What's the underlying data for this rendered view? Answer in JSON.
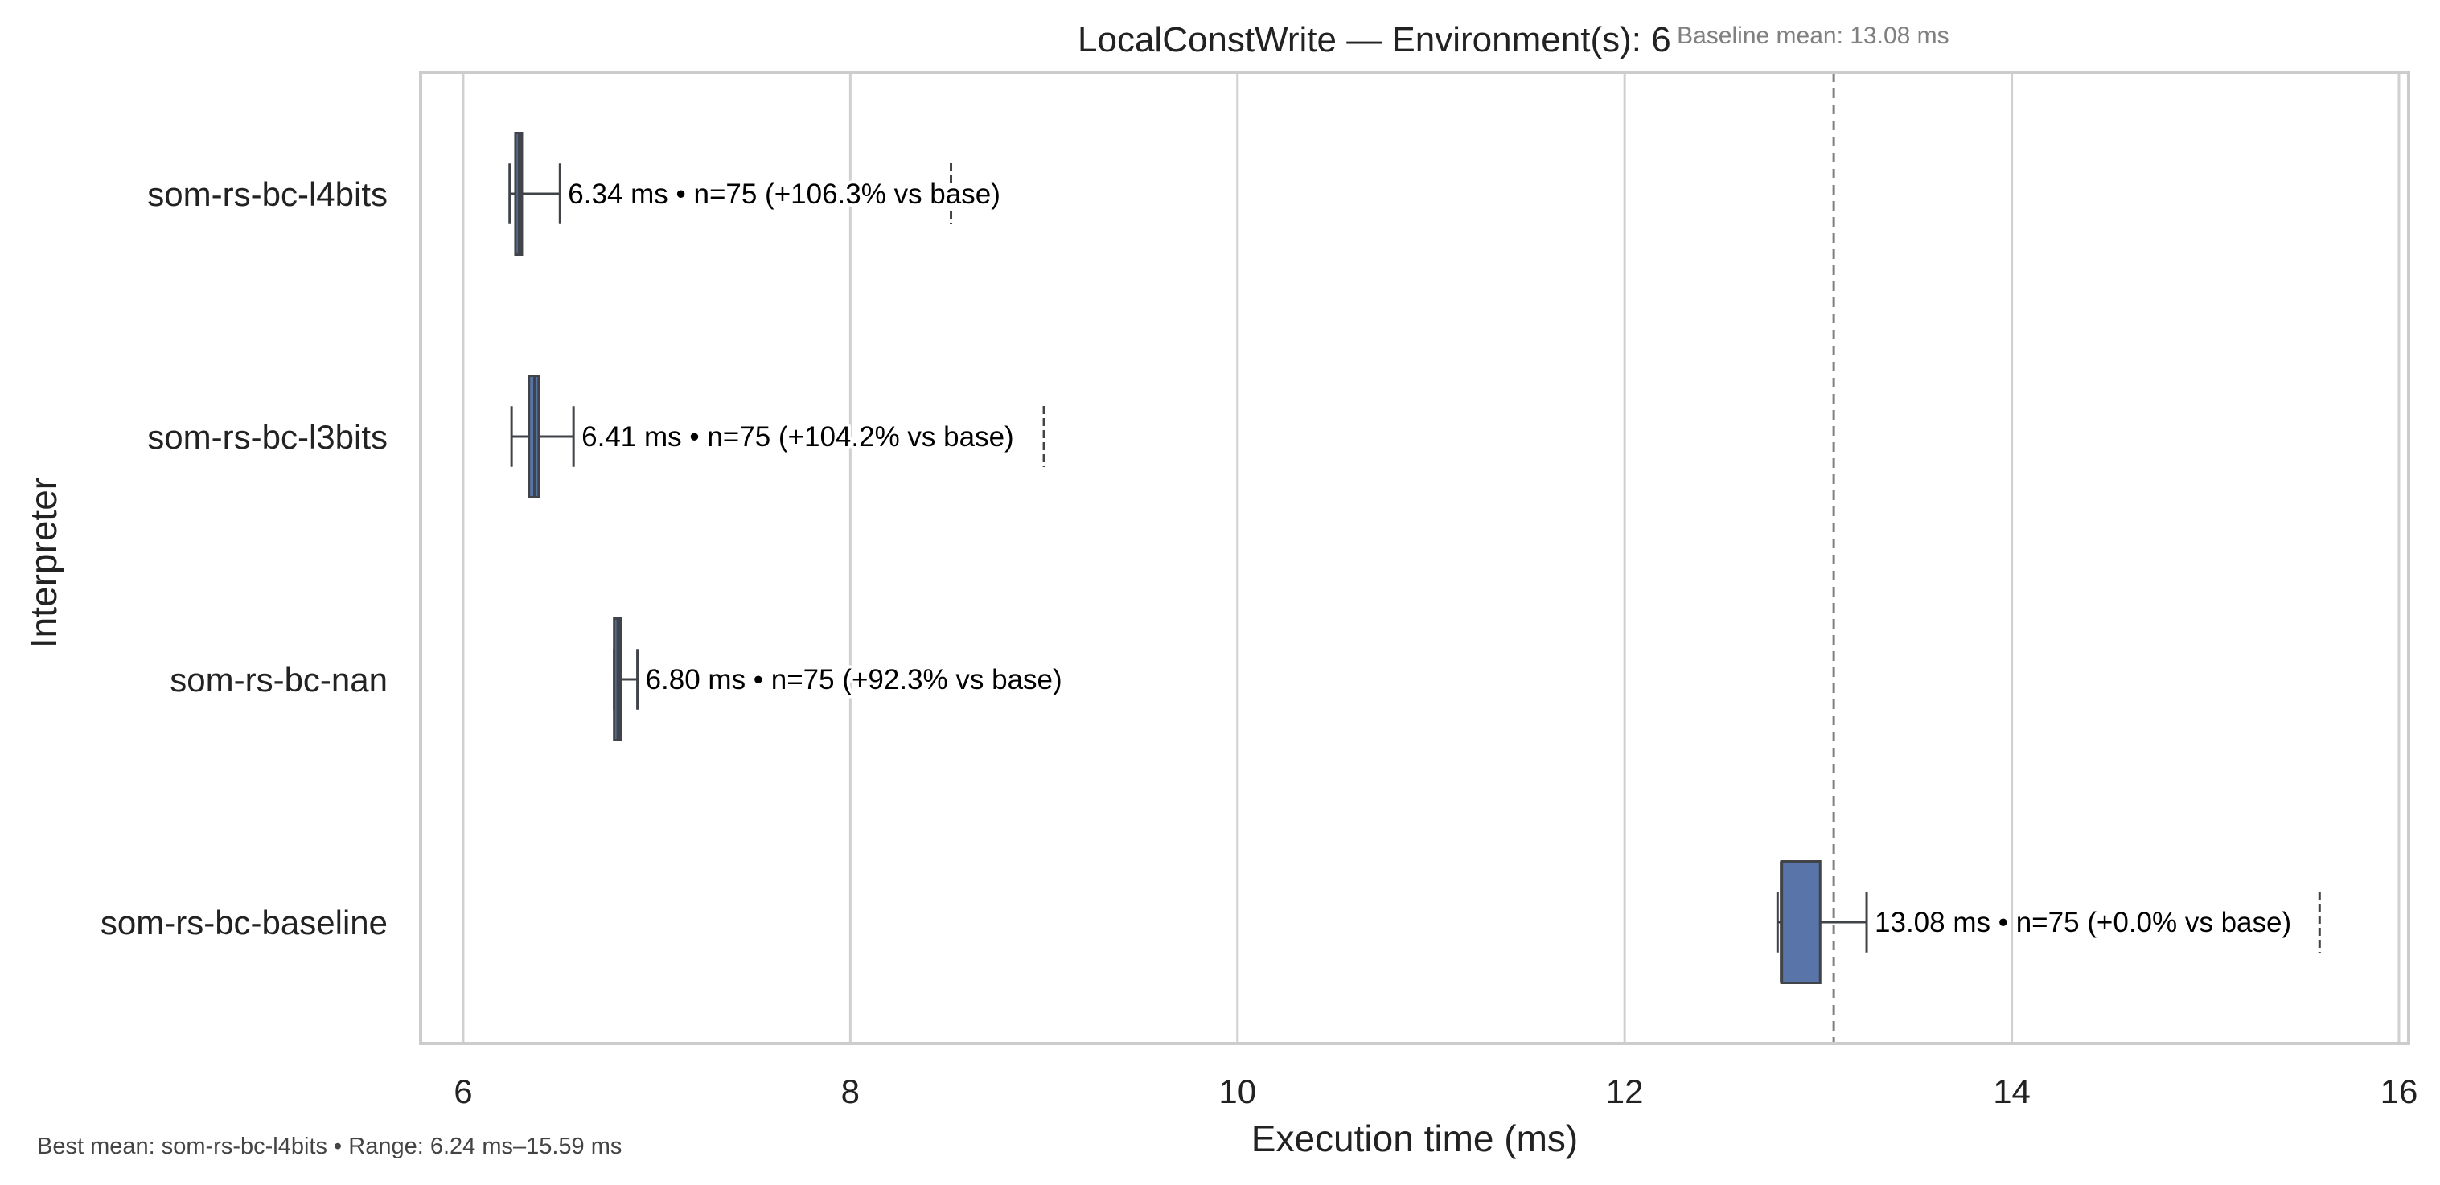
{
  "chart_data": {
    "type": "box",
    "orientation": "horizontal",
    "title": "LocalConstWrite — Environment(s): 6",
    "xlabel": "Execution time (ms)",
    "ylabel": "Interpreter",
    "xlim": [
      5.78,
      16.05
    ],
    "xticks": [
      6,
      8,
      10,
      12,
      14,
      16
    ],
    "grid": "vertical",
    "baseline": {
      "value": 13.08,
      "label": "Baseline mean: 13.08 ms"
    },
    "footnote": "Best mean: som-rs-bc-l4bits • Range: 6.24 ms–15.59 ms",
    "series": [
      {
        "name": "som-rs-bc-l4bits",
        "whisker_low": 6.24,
        "q1": 6.27,
        "median": 6.29,
        "q3": 6.3,
        "whisker_high": 6.5,
        "flier_high": 8.52,
        "label": "6.34 ms • n=75 (+106.3% vs base)"
      },
      {
        "name": "som-rs-bc-l3bits",
        "whisker_low": 6.25,
        "q1": 6.34,
        "median": 6.37,
        "q3": 6.39,
        "whisker_high": 6.57,
        "flier_high": 9.0,
        "label": "6.41 ms • n=75 (+104.2% vs base)"
      },
      {
        "name": "som-rs-bc-nan",
        "whisker_low": 6.78,
        "q1": 6.78,
        "median": 6.8,
        "q3": 6.8,
        "whisker_high": 6.9,
        "flier_high": null,
        "label": "6.80 ms • n=75 (+92.3% vs base)"
      },
      {
        "name": "som-rs-bc-baseline",
        "whisker_low": 12.79,
        "q1": 12.81,
        "median": 12.81,
        "q3": 13.01,
        "whisker_high": 13.25,
        "flier_high": 15.59,
        "label": "13.08 ms • n=75 (+0.0% vs base)"
      }
    ],
    "colors": {
      "box_fill": "#5874a8",
      "box_line": "#404448",
      "grid": "#d0d0d0",
      "frame": "#cccccc",
      "baseline_line": "#808080"
    }
  }
}
